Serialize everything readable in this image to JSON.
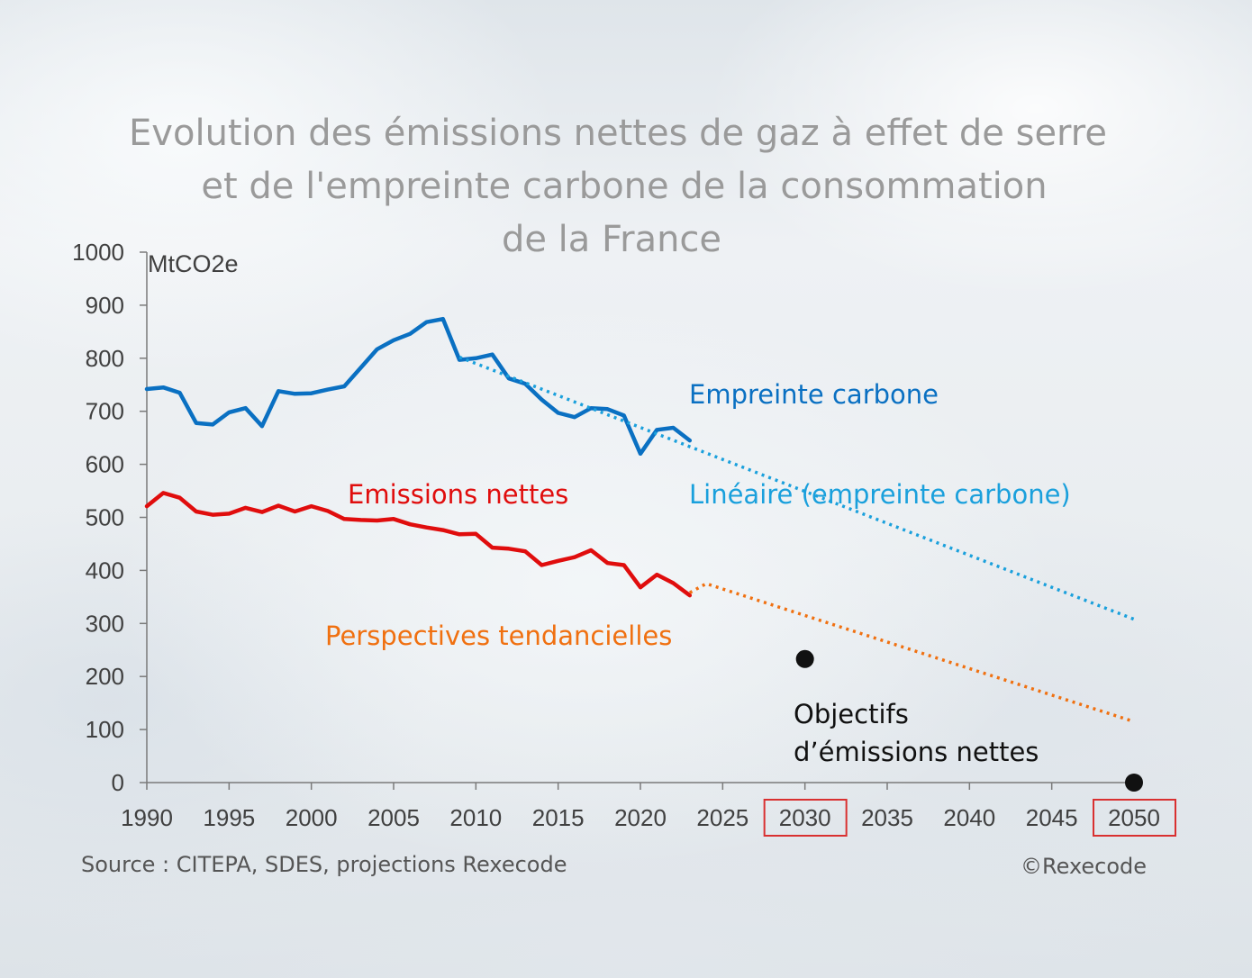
{
  "colors": {
    "empreinte": "#0a70c2",
    "lineaire": "#1aa0dc",
    "emissions": "#e00d0d",
    "perspectives": "#f07010",
    "objectifs": "#111111",
    "highlight_box": "#d93030",
    "axis": "#7a7a7a"
  },
  "chart_data": {
    "type": "line",
    "title": [
      "Evolution des émissions nettes de gaz à effet de serre",
      "et de l'empreinte carbone de la consommation",
      "de la France"
    ],
    "ylabel": "MtCO2e",
    "xlim": [
      1990,
      2050
    ],
    "ylim": [
      0,
      1000
    ],
    "x_ticks": [
      1990,
      1995,
      2000,
      2005,
      2010,
      2015,
      2020,
      2025,
      2030,
      2035,
      2040,
      2045,
      2050
    ],
    "highlighted_x_ticks": [
      2030,
      2050
    ],
    "y_ticks": [
      0,
      100,
      200,
      300,
      400,
      500,
      600,
      700,
      800,
      900,
      1000
    ],
    "series": [
      {
        "name": "Empreinte carbone",
        "style": "solid",
        "color_key": "empreinte",
        "x": [
          1990,
          1991,
          1992,
          1993,
          1994,
          1995,
          1996,
          1997,
          1998,
          1999,
          2000,
          2001,
          2002,
          2003,
          2004,
          2005,
          2006,
          2007,
          2008,
          2009,
          2010,
          2011,
          2012,
          2013,
          2014,
          2015,
          2016,
          2017,
          2018,
          2019,
          2020,
          2021,
          2022,
          2023
        ],
        "y": [
          742,
          745,
          735,
          678,
          675,
          698,
          706,
          672,
          738,
          733,
          734,
          741,
          747,
          782,
          817,
          834,
          846,
          868,
          874,
          797,
          800,
          807,
          762,
          752,
          722,
          697,
          689,
          706,
          704,
          692,
          620,
          665,
          669,
          645
        ]
      },
      {
        "name": "Linéaire (empreinte carbone)",
        "style": "dotted",
        "color_key": "lineaire",
        "x": [
          2009,
          2050
        ],
        "y": [
          802,
          308
        ]
      },
      {
        "name": "Emissions nettes",
        "style": "solid",
        "color_key": "emissions",
        "x": [
          1990,
          1991,
          1992,
          1993,
          1994,
          1995,
          1996,
          1997,
          1998,
          1999,
          2000,
          2001,
          2002,
          2003,
          2004,
          2005,
          2006,
          2007,
          2008,
          2009,
          2010,
          2011,
          2012,
          2013,
          2014,
          2015,
          2016,
          2017,
          2018,
          2019,
          2020,
          2021,
          2022,
          2023
        ],
        "y": [
          521,
          546,
          537,
          511,
          505,
          507,
          518,
          510,
          522,
          511,
          521,
          512,
          497,
          495,
          494,
          497,
          487,
          481,
          476,
          468,
          469,
          443,
          441,
          436,
          410,
          418,
          425,
          438,
          414,
          410,
          368,
          392,
          376,
          353
        ]
      },
      {
        "name": "Perspectives tendancielles",
        "style": "dotted",
        "color_key": "perspectives",
        "x": [
          2023,
          2024,
          2050
        ],
        "y": [
          358,
          375,
          115
        ]
      },
      {
        "name": "Objectifs d’émissions nettes",
        "style": "points",
        "color_key": "objectifs",
        "x": [
          2030,
          2050
        ],
        "y": [
          233,
          0
        ]
      }
    ],
    "annotations": [
      {
        "text": "Empreinte carbone",
        "color_key": "empreinte"
      },
      {
        "text": "Linéaire (empreinte carbone)",
        "color_key": "lineaire"
      },
      {
        "text": "Emissions nettes",
        "color_key": "emissions"
      },
      {
        "text": "Perspectives tendancielles",
        "color_key": "perspectives"
      },
      {
        "text": "Objectifs",
        "color_key": "objectifs"
      },
      {
        "text": "d’émissions nettes",
        "color_key": "objectifs"
      }
    ]
  },
  "footer": {
    "source": "Source : CITEPA, SDES, projections Rexecode",
    "copyright": "©Rexecode"
  }
}
